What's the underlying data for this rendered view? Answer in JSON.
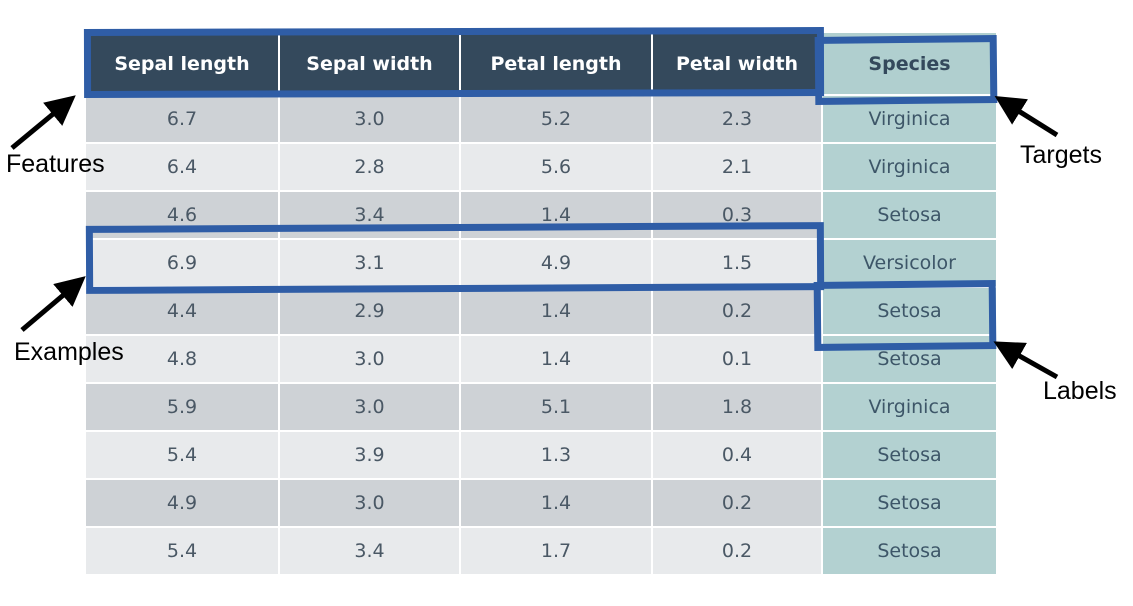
{
  "table": {
    "headers": [
      "Sepal length",
      "Sepal width",
      "Petal length",
      "Petal width",
      "Species"
    ],
    "rows": [
      [
        "6.7",
        "3.0",
        "5.2",
        "2.3",
        "Virginica"
      ],
      [
        "6.4",
        "2.8",
        "5.6",
        "2.1",
        "Virginica"
      ],
      [
        "4.6",
        "3.4",
        "1.4",
        "0.3",
        "Setosa"
      ],
      [
        "6.9",
        "3.1",
        "4.9",
        "1.5",
        "Versicolor"
      ],
      [
        "4.4",
        "2.9",
        "1.4",
        "0.2",
        "Setosa"
      ],
      [
        "4.8",
        "3.0",
        "1.4",
        "0.1",
        "Setosa"
      ],
      [
        "5.9",
        "3.0",
        "5.1",
        "1.8",
        "Virginica"
      ],
      [
        "5.4",
        "3.9",
        "1.3",
        "0.4",
        "Setosa"
      ],
      [
        "4.9",
        "3.0",
        "1.4",
        "0.2",
        "Setosa"
      ],
      [
        "5.4",
        "3.4",
        "1.7",
        "0.2",
        "Setosa"
      ]
    ]
  },
  "annotations": {
    "features": "Features",
    "examples": "Examples",
    "targets": "Targets",
    "labels": "Labels"
  },
  "colors": {
    "header_bg": "#34495c",
    "species_bg": "#b3d1d1",
    "highlight": "#2f5da6"
  }
}
